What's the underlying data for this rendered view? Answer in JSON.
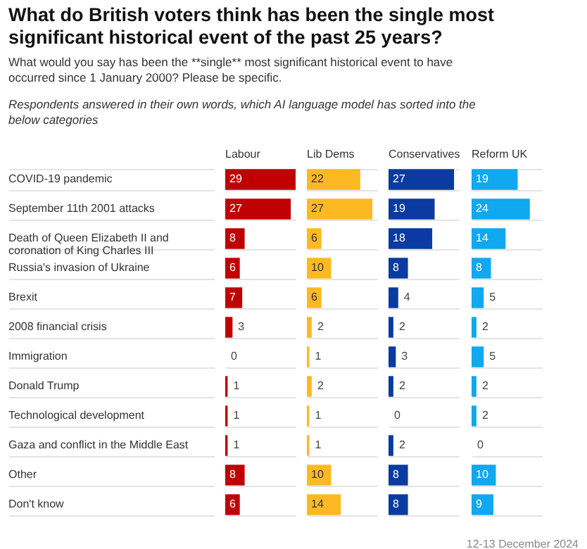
{
  "chart_data": [
    {
      "type": "bar",
      "orientation": "horizontal",
      "title": "What do British voters think has been the single most significant historical event of the past 25 years?",
      "subtitle": "What would you say has been the **single** most significant historical event to have occurred since 1 January 2000? Please be specific.",
      "annotations": [
        "Respondents answered in their own words, which AI language model has sorted into the below categories",
        "12-13 December 2024"
      ],
      "categories": [
        "COVID-19 pandemic",
        "September 11th 2001 attacks",
        "Death of Queen Elizabeth II and coronation of King Charles III",
        "Russia's invasion of Ukraine",
        "Brexit",
        "2008 financial crisis",
        "Immigration",
        "Donald Trump",
        "Technological development",
        "Gaza and conflict in the Middle East",
        "Other",
        "Don't know"
      ],
      "series": [
        {
          "name": "Labour",
          "color": "#c00000",
          "values": [
            29,
            27,
            8,
            6,
            7,
            3,
            0,
            1,
            1,
            1,
            8,
            6
          ]
        }
      ],
      "data_labels": true,
      "grid": "y",
      "tick_labels": "y"
    },
    {
      "type": "bar",
      "orientation": "horizontal",
      "categories": [
        null,
        null,
        null,
        null,
        null,
        null,
        null,
        null,
        null,
        null,
        null,
        null
      ],
      "series": [
        {
          "name": "Lib Dems",
          "color": "#fdb924",
          "values": [
            22,
            27,
            6,
            10,
            6,
            2,
            1,
            2,
            1,
            1,
            10,
            14
          ]
        }
      ],
      "data_labels": true,
      "grid": "y",
      "tick_labels": false
    },
    {
      "type": "bar",
      "orientation": "horizontal",
      "categories": [
        null,
        null,
        null,
        null,
        null,
        null,
        null,
        null,
        null,
        null,
        null,
        null
      ],
      "series": [
        {
          "name": "Conservatives",
          "color": "#0b3aa0",
          "values": [
            27,
            19,
            18,
            8,
            4,
            2,
            3,
            2,
            0,
            2,
            8,
            8
          ]
        }
      ],
      "data_labels": true,
      "grid": "y",
      "tick_labels": false
    },
    {
      "type": "bar",
      "orientation": "horizontal",
      "categories": [
        null,
        null,
        null,
        null,
        null,
        null,
        null,
        null,
        null,
        null,
        null,
        null
      ],
      "series": [
        {
          "name": "Reform UK",
          "color": "#10a8ee",
          "values": [
            19,
            24,
            14,
            8,
            5,
            2,
            5,
            2,
            2,
            0,
            10,
            9
          ]
        }
      ],
      "data_labels": true,
      "grid": "y",
      "tick_labels": false
    }
  ]
}
